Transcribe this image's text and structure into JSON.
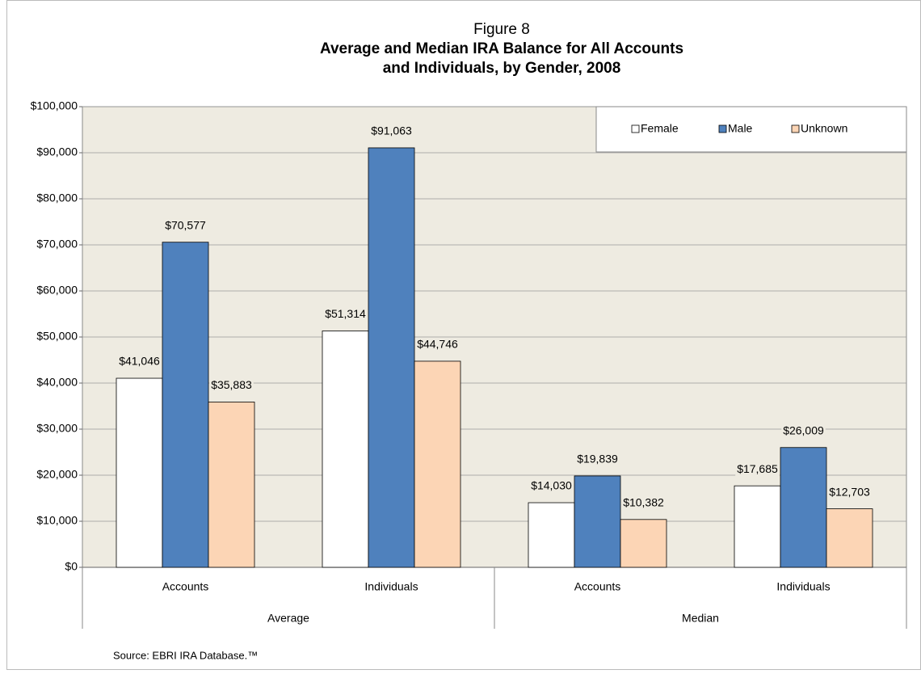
{
  "chart_data": {
    "type": "bar",
    "supertitle": "Figure 8",
    "title": "Average and Median IRA Balance for All Accounts",
    "title_line2": "and Individuals, by Gender, 2008",
    "categories": [
      "Accounts",
      "Individuals",
      "Accounts",
      "Individuals"
    ],
    "groups": [
      "Average",
      "Median"
    ],
    "series": [
      {
        "name": "Female",
        "color": "#ffffff",
        "values": [
          41046,
          51314,
          14030,
          17685
        ],
        "value_labels": [
          "$41,046",
          "$51,314",
          "$14,030",
          "$17,685"
        ]
      },
      {
        "name": "Male",
        "color": "#4f81bd",
        "values": [
          70577,
          91063,
          19839,
          26009
        ],
        "value_labels": [
          "$70,577",
          "$91,063",
          "$19,839",
          "$26,009"
        ]
      },
      {
        "name": "Unknown",
        "color": "#fcd5b5",
        "values": [
          35883,
          44746,
          10382,
          12703
        ],
        "value_labels": [
          "$35,883",
          "$44,746",
          "$10,382",
          "$12,703"
        ]
      }
    ],
    "ylim": [
      0,
      100000
    ],
    "yticks": [
      {
        "value": 0,
        "label": "$0"
      },
      {
        "value": 10000,
        "label": "$10,000"
      },
      {
        "value": 20000,
        "label": "$20,000"
      },
      {
        "value": 30000,
        "label": "$30,000"
      },
      {
        "value": 40000,
        "label": "$40,000"
      },
      {
        "value": 50000,
        "label": "$50,000"
      },
      {
        "value": 60000,
        "label": "$60,000"
      },
      {
        "value": 70000,
        "label": "$70,000"
      },
      {
        "value": 80000,
        "label": "$80,000"
      },
      {
        "value": 90000,
        "label": "$90,000"
      },
      {
        "value": 100000,
        "label": "$100,000"
      }
    ],
    "grid": true,
    "legend": "top-right",
    "source": "Source: EBRI IRA Database.™"
  }
}
